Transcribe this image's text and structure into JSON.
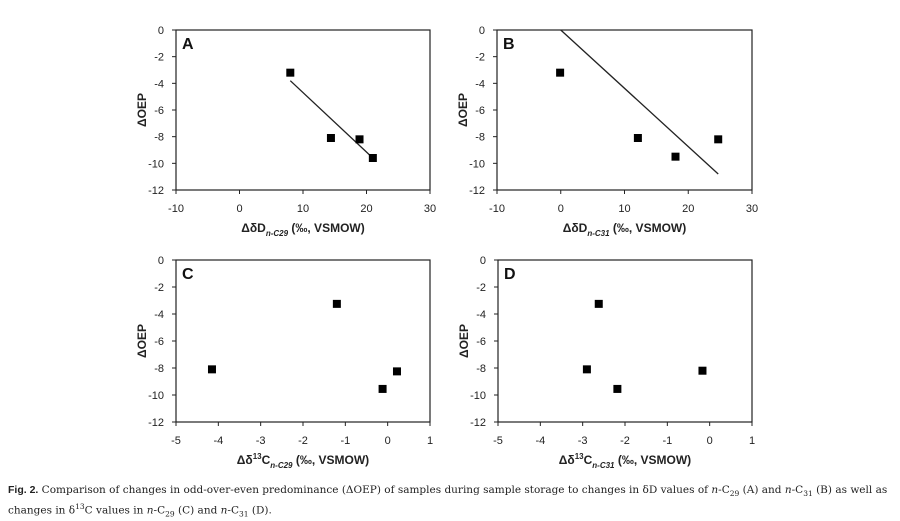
{
  "chart_data": [
    {
      "type": "scatter",
      "panel": "A",
      "xlabel": "ΔδD n-C29 (‰, VSMOW)",
      "xlabel_parts": {
        "pre": "ΔδD",
        "sub": "n-C29",
        "post": " (‰, VSMOW)"
      },
      "ylabel": "ΔOEP",
      "xlim": [
        -10,
        30
      ],
      "xticks": [
        -10,
        0,
        10,
        20,
        30
      ],
      "ylim": [
        -12,
        0
      ],
      "yticks": [
        0,
        -2,
        -4,
        -6,
        -8,
        -10,
        -12
      ],
      "points": [
        [
          8.0,
          -3.2
        ],
        [
          14.4,
          -8.1
        ],
        [
          18.9,
          -8.2
        ],
        [
          21.0,
          -9.6
        ]
      ],
      "trendline": [
        [
          8.0,
          -3.8
        ],
        [
          21.0,
          -9.6
        ]
      ]
    },
    {
      "type": "scatter",
      "panel": "B",
      "xlabel": "ΔδD n-C31 (‰, VSMOW)",
      "xlabel_parts": {
        "pre": "ΔδD",
        "sub": "n-C31",
        "post": " (‰, VSMOW)"
      },
      "ylabel": "ΔOEP",
      "xlim": [
        -10,
        30
      ],
      "xticks": [
        -10,
        0,
        10,
        20,
        30
      ],
      "ylim": [
        -12,
        0
      ],
      "yticks": [
        0,
        -2,
        -4,
        -6,
        -8,
        -10,
        -12
      ],
      "points": [
        [
          -0.1,
          -3.2
        ],
        [
          12.1,
          -8.1
        ],
        [
          18.0,
          -9.5
        ],
        [
          24.7,
          -8.2
        ]
      ],
      "trendline": [
        [
          0.0,
          0.0
        ],
        [
          24.7,
          -10.8
        ]
      ]
    },
    {
      "type": "scatter",
      "panel": "C",
      "xlabel": "Δδ13C n-C29 (‰, VSMOW)",
      "xlabel_parts": {
        "pre": "Δδ",
        "sup": "13",
        "mid": "C",
        "sub": "n-C29",
        "post": " (‰, VSMOW)"
      },
      "ylabel": "ΔOEP",
      "xlim": [
        -5,
        1
      ],
      "xticks": [
        -5,
        -4,
        -3,
        -2,
        -1,
        0,
        1
      ],
      "ylim": [
        -12,
        0
      ],
      "yticks": [
        0,
        -2,
        -4,
        -6,
        -8,
        -10,
        -12
      ],
      "points": [
        [
          -4.15,
          -8.1
        ],
        [
          -1.2,
          -3.25
        ],
        [
          -0.12,
          -9.55
        ],
        [
          0.22,
          -8.25
        ]
      ]
    },
    {
      "type": "scatter",
      "panel": "D",
      "xlabel": "Δδ13C n-C31 (‰, VSMOW)",
      "xlabel_parts": {
        "pre": "Δδ",
        "sup": "13",
        "mid": "C",
        "sub": "n-C31",
        "post": " (‰, VSMOW)"
      },
      "ylabel": "ΔOEP",
      "xlim": [
        -5,
        1
      ],
      "xticks": [
        -5,
        -4,
        -3,
        -2,
        -1,
        0,
        1
      ],
      "ylim": [
        -12,
        0
      ],
      "yticks": [
        0,
        -2,
        -4,
        -6,
        -8,
        -10,
        -12
      ],
      "points": [
        [
          -2.9,
          -8.1
        ],
        [
          -2.62,
          -3.25
        ],
        [
          -2.18,
          -9.55
        ],
        [
          -0.17,
          -8.2
        ]
      ]
    }
  ],
  "caption": {
    "label": "Fig. 2.",
    "text": "Comparison of changes in odd-over-even predominance (ΔOEP) of samples during sample storage to changes in δD values of n-C29 (A) and n-C31 (B) as well as changes in δ13C values in n-C29 (C) and n-C31 (D).",
    "parts": [
      " Comparison of changes in odd-over-even predominance (ΔOEP) of samples during sample storage to changes in δD values of ",
      "n",
      "-C",
      "29",
      " (A) and ",
      "n",
      "-C",
      "31",
      " (B) as well as changes in δ",
      "13",
      "C values in ",
      "n",
      "-C",
      "29",
      " (C) and ",
      "n",
      "-C",
      "31",
      " (D)."
    ]
  }
}
